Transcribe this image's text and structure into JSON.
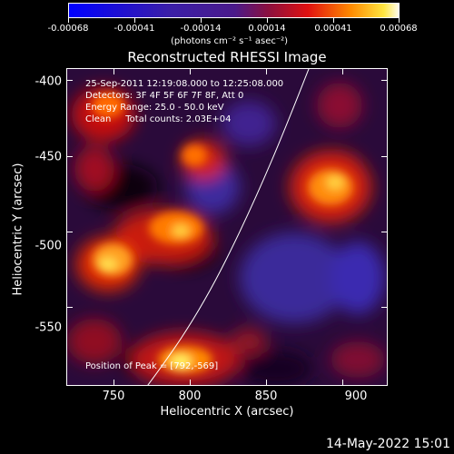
{
  "colorbar": {
    "tick_labels": [
      "-0.00068",
      "-0.00041",
      "-0.00014",
      "0.00014",
      "0.00041",
      "0.00068"
    ],
    "units": "(photons cm⁻² s⁻¹ asec⁻²)"
  },
  "title": "Reconstructed RHESSI Image",
  "annotations": {
    "line1": "25-Sep-2011 12:19:08.000 to 12:25:08.000",
    "line2": "Detectors: 3F 4F 5F 6F 7F 8F, Att 0",
    "line3": "Energy Range: 25.0 - 50.0 keV",
    "line4": "Clean     Total counts: 2.03E+04",
    "peak": "Position of Peak = [792,-569]"
  },
  "axes": {
    "xlabel": "Heliocentric X (arcsec)",
    "ylabel": "Heliocentric Y (arcsec)",
    "xticks": [
      "750",
      "800",
      "850",
      "900"
    ],
    "yticks": [
      "-400",
      "-450",
      "-500",
      "-550"
    ]
  },
  "timestamp": "14-May-2022 15:01"
}
